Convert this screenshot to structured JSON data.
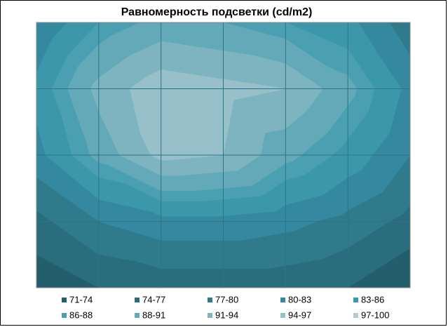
{
  "chart_data": {
    "type": "contour",
    "title": "Равномерность подсветки (cd/m2)",
    "grid": [
      [
        80,
        86,
        89,
        88,
        86,
        84,
        78
      ],
      [
        84,
        92,
        96,
        95,
        94,
        89,
        82
      ],
      [
        82,
        89,
        95,
        94,
        89,
        85,
        80
      ],
      [
        76,
        80,
        82,
        82,
        81,
        79,
        76
      ],
      [
        72,
        74,
        75,
        75,
        75,
        74,
        71
      ]
    ],
    "bands": [
      {
        "name": "71-74",
        "from": 71,
        "to": 74,
        "color": "#245e6c"
      },
      {
        "name": "74-77",
        "from": 74,
        "to": 77,
        "color": "#2a6d7d"
      },
      {
        "name": "77-80",
        "from": 77,
        "to": 80,
        "color": "#2f7b8b"
      },
      {
        "name": "80-83",
        "from": 80,
        "to": 83,
        "color": "#3489a0"
      },
      {
        "name": "83-86",
        "from": 83,
        "to": 86,
        "color": "#3b97a9"
      },
      {
        "name": "86-88",
        "from": 86,
        "to": 88,
        "color": "#4aa0b1"
      },
      {
        "name": "88-91",
        "from": 88,
        "to": 91,
        "color": "#63a9b7"
      },
      {
        "name": "91-94",
        "from": 91,
        "to": 94,
        "color": "#7eb4c0"
      },
      {
        "name": "94-97",
        "from": 94,
        "to": 97,
        "color": "#97c0ca"
      },
      {
        "name": "97-100",
        "from": 97,
        "to": 100,
        "color": "#b0ccd3"
      }
    ]
  }
}
